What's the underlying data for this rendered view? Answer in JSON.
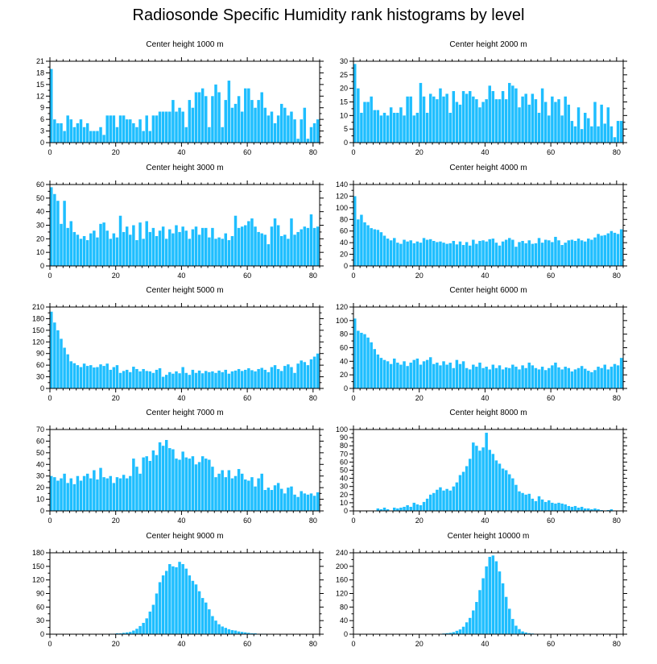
{
  "title": "Radiosonde Specific Humidity rank histograms by level",
  "colors": {
    "bar": "#1ebeff",
    "bar_edge": "#ffffff",
    "axis": "#000000"
  },
  "chart_data": [
    {
      "type": "bar",
      "title": "Center height 1000 m",
      "xlim": [
        0,
        82
      ],
      "ylim": [
        0,
        21
      ],
      "xticks": [
        0,
        20,
        40,
        60,
        80
      ],
      "yticks": [
        0,
        3,
        6,
        9,
        12,
        15,
        18,
        21
      ],
      "xlabel": "",
      "ylabel": "",
      "values": [
        19,
        6,
        5,
        5,
        3,
        7,
        6,
        4,
        5,
        6,
        4,
        5,
        3,
        3,
        3,
        4,
        2,
        7,
        7,
        7,
        4,
        7,
        7,
        6,
        6,
        5,
        4,
        6,
        3,
        7,
        3,
        7,
        7,
        8,
        8,
        8,
        8,
        11,
        8,
        9,
        8,
        4,
        11,
        9,
        13,
        13,
        14,
        12,
        4,
        12,
        15,
        13,
        4,
        11,
        16,
        9,
        10,
        12,
        8,
        14,
        14,
        11,
        9,
        11,
        13,
        9,
        7,
        8,
        5,
        7,
        10,
        9,
        7,
        8,
        6,
        1,
        6,
        9,
        1,
        4,
        5,
        6
      ]
    },
    {
      "type": "bar",
      "title": "Center height 2000 m",
      "xlim": [
        0,
        82
      ],
      "ylim": [
        0,
        30
      ],
      "xticks": [
        0,
        20,
        40,
        60,
        80
      ],
      "yticks": [
        0,
        5,
        10,
        15,
        20,
        25,
        30
      ],
      "xlabel": "",
      "ylabel": "",
      "values": [
        29,
        20,
        11,
        15,
        15,
        17,
        12,
        12,
        10,
        11,
        10,
        13,
        11,
        11,
        13,
        10,
        17,
        17,
        10,
        11,
        22,
        17,
        11,
        18,
        17,
        16,
        20,
        17,
        18,
        11,
        19,
        15,
        14,
        19,
        18,
        19,
        17,
        16,
        13,
        15,
        16,
        21,
        19,
        16,
        16,
        19,
        16,
        22,
        21,
        20,
        13,
        17,
        18,
        14,
        18,
        16,
        11,
        20,
        15,
        10,
        17,
        15,
        16,
        10,
        17,
        14,
        8,
        6,
        13,
        5,
        11,
        9,
        6,
        15,
        6,
        14,
        7,
        13,
        6,
        2,
        8,
        8
      ]
    },
    {
      "type": "bar",
      "title": "Center height 3000 m",
      "xlim": [
        0,
        82
      ],
      "ylim": [
        0,
        60
      ],
      "xticks": [
        0,
        20,
        40,
        60,
        80
      ],
      "yticks": [
        0,
        10,
        20,
        30,
        40,
        50,
        60
      ],
      "xlabel": "",
      "ylabel": "",
      "values": [
        58,
        53,
        48,
        31,
        48,
        28,
        33,
        25,
        23,
        20,
        22,
        19,
        24,
        26,
        21,
        31,
        32,
        26,
        20,
        24,
        21,
        37,
        25,
        29,
        23,
        30,
        19,
        32,
        20,
        33,
        25,
        28,
        22,
        26,
        29,
        20,
        27,
        24,
        30,
        25,
        29,
        26,
        20,
        27,
        29,
        23,
        28,
        28,
        21,
        28,
        20,
        21,
        20,
        24,
        19,
        22,
        37,
        28,
        29,
        30,
        33,
        35,
        29,
        25,
        24,
        23,
        16,
        29,
        35,
        30,
        22,
        23,
        20,
        35,
        23,
        25,
        27,
        29,
        28,
        38,
        28,
        29
      ]
    },
    {
      "type": "bar",
      "title": "Center height 4000 m",
      "xlim": [
        0,
        82
      ],
      "ylim": [
        0,
        140
      ],
      "xticks": [
        0,
        20,
        40,
        60,
        80
      ],
      "yticks": [
        0,
        20,
        40,
        60,
        80,
        100,
        120,
        140
      ],
      "xlabel": "",
      "ylabel": "",
      "values": [
        120,
        80,
        88,
        75,
        70,
        65,
        63,
        62,
        58,
        52,
        47,
        44,
        48,
        40,
        38,
        45,
        42,
        44,
        39,
        42,
        40,
        48,
        45,
        46,
        43,
        41,
        42,
        40,
        38,
        39,
        43,
        37,
        42,
        36,
        41,
        35,
        45,
        38,
        43,
        44,
        42,
        46,
        47,
        40,
        35,
        42,
        45,
        48,
        45,
        33,
        41,
        43,
        39,
        44,
        38,
        39,
        48,
        40,
        45,
        44,
        41,
        50,
        44,
        36,
        40,
        44,
        45,
        43,
        47,
        44,
        42,
        47,
        45,
        49,
        55,
        52,
        53,
        56,
        60,
        57,
        55,
        63
      ]
    },
    {
      "type": "bar",
      "title": "Center height 5000 m",
      "xlim": [
        0,
        82
      ],
      "ylim": [
        0,
        210
      ],
      "xticks": [
        0,
        20,
        40,
        60,
        80
      ],
      "yticks": [
        0,
        30,
        60,
        90,
        120,
        150,
        180,
        210
      ],
      "xlabel": "",
      "ylabel": "",
      "values": [
        198,
        170,
        150,
        128,
        105,
        88,
        70,
        65,
        60,
        55,
        64,
        58,
        60,
        54,
        55,
        62,
        58,
        64,
        48,
        55,
        60,
        40,
        45,
        48,
        42,
        56,
        50,
        44,
        50,
        45,
        44,
        40,
        48,
        52,
        30,
        35,
        42,
        38,
        44,
        39,
        55,
        40,
        35,
        48,
        40,
        46,
        39,
        45,
        42,
        44,
        40,
        46,
        42,
        48,
        38,
        44,
        46,
        50,
        45,
        48,
        52,
        47,
        44,
        50,
        53,
        48,
        42,
        55,
        60,
        50,
        45,
        58,
        62,
        55,
        40,
        64,
        72,
        68,
        60,
        75,
        82,
        90
      ]
    },
    {
      "type": "bar",
      "title": "Center height 6000 m",
      "xlim": [
        0,
        82
      ],
      "ylim": [
        0,
        120
      ],
      "xticks": [
        0,
        20,
        40,
        60,
        80
      ],
      "yticks": [
        0,
        20,
        40,
        60,
        80,
        100,
        120
      ],
      "xlabel": "",
      "ylabel": "",
      "values": [
        103,
        85,
        82,
        80,
        75,
        68,
        58,
        50,
        45,
        42,
        40,
        36,
        44,
        38,
        35,
        40,
        33,
        38,
        42,
        44,
        35,
        40,
        42,
        46,
        36,
        38,
        34,
        40,
        35,
        38,
        30,
        42,
        36,
        40,
        30,
        28,
        35,
        32,
        38,
        30,
        32,
        28,
        35,
        30,
        34,
        28,
        31,
        30,
        35,
        32,
        28,
        34,
        30,
        38,
        34,
        30,
        28,
        32,
        27,
        30,
        34,
        38,
        31,
        28,
        32,
        30,
        25,
        28,
        30,
        33,
        29,
        26,
        24,
        27,
        32,
        30,
        35,
        28,
        32,
        36,
        34,
        45
      ]
    },
    {
      "type": "bar",
      "title": "Center height 7000 m",
      "xlim": [
        0,
        82
      ],
      "ylim": [
        0,
        70
      ],
      "xticks": [
        0,
        20,
        40,
        60,
        80
      ],
      "yticks": [
        0,
        10,
        20,
        30,
        40,
        50,
        60,
        70
      ],
      "xlabel": "",
      "ylabel": "",
      "values": [
        30,
        29,
        26,
        28,
        32,
        24,
        28,
        23,
        30,
        26,
        30,
        32,
        28,
        35,
        27,
        37,
        29,
        28,
        30,
        24,
        29,
        28,
        31,
        28,
        30,
        45,
        38,
        32,
        46,
        47,
        43,
        52,
        48,
        59,
        56,
        61,
        54,
        53,
        45,
        44,
        51,
        46,
        45,
        47,
        40,
        42,
        47,
        45,
        44,
        38,
        29,
        32,
        35,
        29,
        35,
        28,
        30,
        36,
        32,
        27,
        26,
        29,
        21,
        28,
        32,
        18,
        20,
        18,
        22,
        24,
        19,
        15,
        20,
        21,
        14,
        12,
        17,
        15,
        14,
        15,
        13,
        16
      ]
    },
    {
      "type": "bar",
      "title": "Center height 8000 m",
      "xlim": [
        0,
        82
      ],
      "ylim": [
        0,
        100
      ],
      "xticks": [
        0,
        20,
        40,
        60,
        80
      ],
      "yticks": [
        0,
        10,
        20,
        30,
        40,
        50,
        60,
        70,
        80,
        90,
        100
      ],
      "xlabel": "",
      "ylabel": "",
      "values": [
        0,
        0,
        0,
        0,
        0,
        0,
        0,
        3,
        2,
        4,
        2,
        0,
        4,
        3,
        4,
        5,
        7,
        5,
        10,
        8,
        7,
        11,
        15,
        20,
        22,
        26,
        29,
        25,
        27,
        25,
        30,
        35,
        44,
        48,
        55,
        64,
        84,
        80,
        74,
        78,
        96,
        75,
        70,
        62,
        58,
        52,
        50,
        45,
        40,
        32,
        24,
        22,
        20,
        21,
        15,
        12,
        18,
        14,
        11,
        13,
        10,
        9,
        10,
        9,
        8,
        6,
        5,
        6,
        4,
        5,
        3,
        3,
        2,
        3,
        2,
        1,
        0,
        1,
        2,
        0,
        0,
        0
      ]
    },
    {
      "type": "bar",
      "title": "Center height 9000 m",
      "xlim": [
        0,
        82
      ],
      "ylim": [
        0,
        180
      ],
      "xticks": [
        0,
        20,
        40,
        60,
        80
      ],
      "yticks": [
        0,
        30,
        60,
        90,
        120,
        150,
        180
      ],
      "xlabel": "",
      "ylabel": "",
      "values": [
        0,
        0,
        0,
        0,
        0,
        0,
        0,
        0,
        0,
        0,
        0,
        0,
        0,
        0,
        0,
        0,
        0,
        0,
        1,
        1,
        2,
        2,
        3,
        4,
        5,
        8,
        12,
        18,
        25,
        35,
        50,
        65,
        90,
        115,
        130,
        140,
        155,
        150,
        148,
        160,
        155,
        145,
        130,
        118,
        110,
        95,
        80,
        70,
        55,
        40,
        30,
        22,
        17,
        14,
        11,
        9,
        8,
        6,
        5,
        4,
        3,
        2,
        2,
        1,
        1,
        1,
        0,
        0,
        0,
        0,
        0,
        0,
        0,
        0,
        0,
        0,
        0,
        0,
        0,
        0,
        0,
        0
      ]
    },
    {
      "type": "bar",
      "title": "Center height 10000 m",
      "xlim": [
        0,
        82
      ],
      "ylim": [
        0,
        240
      ],
      "xticks": [
        0,
        20,
        40,
        60,
        80
      ],
      "yticks": [
        0,
        40,
        80,
        120,
        160,
        200,
        240
      ],
      "xlabel": "",
      "ylabel": "",
      "values": [
        0,
        0,
        0,
        0,
        0,
        0,
        0,
        0,
        0,
        0,
        0,
        0,
        0,
        0,
        0,
        0,
        0,
        0,
        0,
        0,
        0,
        0,
        0,
        0,
        0,
        1,
        1,
        2,
        3,
        4,
        6,
        10,
        14,
        22,
        35,
        48,
        70,
        95,
        130,
        165,
        200,
        228,
        232,
        215,
        185,
        150,
        110,
        75,
        45,
        25,
        15,
        8,
        5,
        3,
        2,
        1,
        1,
        0,
        0,
        0,
        0,
        0,
        0,
        0,
        0,
        0,
        0,
        0,
        0,
        0,
        0,
        0,
        0,
        0,
        0,
        0,
        0,
        0,
        0,
        0,
        0,
        0
      ]
    }
  ]
}
